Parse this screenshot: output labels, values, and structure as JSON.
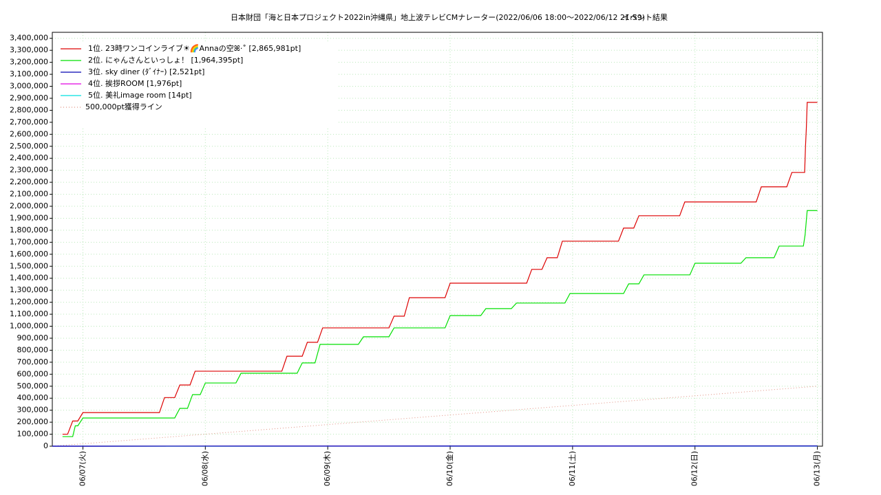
{
  "chart_data": {
    "type": "line",
    "title": "日本財団「海と日本プロジェクト2022in沖縄県」地上波テレビCMナレーター(2022/06/06 18:00～2022/06/12 21:59)",
    "subtitle": "イベント結果",
    "xlim": [
      "2022/06/06 18:00",
      "2022/06/13 01:00"
    ],
    "xticks": [
      {
        "value": "2022/06/07 00:00",
        "label": "06/07(火)"
      },
      {
        "value": "2022/06/08 00:00",
        "label": "06/08(水)"
      },
      {
        "value": "2022/06/09 00:00",
        "label": "06/09(木)"
      },
      {
        "value": "2022/06/10 00:00",
        "label": "06/10(金)"
      },
      {
        "value": "2022/06/11 00:00",
        "label": "06/11(土)"
      },
      {
        "value": "2022/06/12 00:00",
        "label": "06/12(日)"
      },
      {
        "value": "2022/06/13 00:00",
        "label": "06/13(月)"
      }
    ],
    "ylim": [
      0,
      3450000
    ],
    "yticks": [
      0,
      {
        "value": 100000,
        "label": "100,000"
      },
      {
        "value": 200000,
        "label": "200,000"
      },
      {
        "value": 300000,
        "label": "300,000"
      },
      {
        "value": 400000,
        "label": "400,000"
      },
      {
        "value": 500000,
        "label": "500,000"
      },
      {
        "value": 600000,
        "label": "600,000"
      },
      {
        "value": 700000,
        "label": "700,000"
      },
      {
        "value": 800000,
        "label": "800,000"
      },
      {
        "value": 900000,
        "label": "900,000"
      },
      {
        "value": 1000000,
        "label": "1,000,000"
      },
      {
        "value": 1100000,
        "label": "1,100,000"
      },
      {
        "value": 1200000,
        "label": "1,200,000"
      },
      {
        "value": 1300000,
        "label": "1,300,000"
      },
      {
        "value": 1400000,
        "label": "1,400,000"
      },
      {
        "value": 1500000,
        "label": "1,500,000"
      },
      {
        "value": 1600000,
        "label": "1,600,000"
      },
      {
        "value": 1700000,
        "label": "1,700,000"
      },
      {
        "value": 1800000,
        "label": "1,800,000"
      },
      {
        "value": 1900000,
        "label": "1,900,000"
      },
      {
        "value": 2000000,
        "label": "2,000,000"
      },
      {
        "value": 2100000,
        "label": "2,100,000"
      },
      {
        "value": 2200000,
        "label": "2,200,000"
      },
      {
        "value": 2300000,
        "label": "2,300,000"
      },
      {
        "value": 2400000,
        "label": "2,400,000"
      },
      {
        "value": 2500000,
        "label": "2,500,000"
      },
      {
        "value": 2600000,
        "label": "2,600,000"
      },
      {
        "value": 2700000,
        "label": "2,700,000"
      },
      {
        "value": 2800000,
        "label": "2,800,000"
      },
      {
        "value": 2900000,
        "label": "2,900,000"
      },
      {
        "value": 3000000,
        "label": "3,000,000"
      },
      {
        "value": 3100000,
        "label": "3,100,000"
      },
      {
        "value": 3200000,
        "label": "3,200,000"
      },
      {
        "value": 3300000,
        "label": "3,300,000"
      },
      {
        "value": 3400000,
        "label": "3,400,000"
      }
    ],
    "grid": true,
    "legend": "upper left",
    "series": [
      {
        "name": "1位. 23時ワンコインライブ☀🌈Annaの空ꕤ‧˚ [2,865,981pt]",
        "color": "#dd0000",
        "x": [
          "2022/06/06 20:00",
          "2022/06/06 21:00",
          "2022/06/06 22:00",
          "2022/06/06 23:00",
          "2022/06/07 00:00",
          "2022/06/07 15:00",
          "2022/06/07 16:00",
          "2022/06/07 18:00",
          "2022/06/07 19:00",
          "2022/06/07 21:00",
          "2022/06/07 22:00",
          "2022/06/08 15:00",
          "2022/06/08 16:00",
          "2022/06/08 19:00",
          "2022/06/08 20:00",
          "2022/06/08 22:00",
          "2022/06/08 23:00",
          "2022/06/09 12:00",
          "2022/06/09 13:00",
          "2022/06/09 15:00",
          "2022/06/09 16:00",
          "2022/06/09 23:00",
          "2022/06/10 00:00",
          "2022/06/10 15:00",
          "2022/06/10 16:00",
          "2022/06/10 18:00",
          "2022/06/10 19:00",
          "2022/06/10 21:00",
          "2022/06/10 22:00",
          "2022/06/11 09:00",
          "2022/06/11 10:00",
          "2022/06/11 12:00",
          "2022/06/11 13:00",
          "2022/06/11 21:00",
          "2022/06/11 22:00",
          "2022/06/12 12:00",
          "2022/06/12 13:00",
          "2022/06/12 18:00",
          "2022/06/12 19:00",
          "2022/06/12 21:30",
          "2022/06/12 21:40",
          "2022/06/12 21:50",
          "2022/06/12 22:00",
          "2022/06/13 00:00"
        ],
        "values": [
          100000,
          100000,
          210000,
          210000,
          280000,
          280000,
          405000,
          405000,
          510000,
          510000,
          625000,
          625000,
          750000,
          750000,
          866000,
          866000,
          986000,
          986000,
          1084000,
          1084000,
          1238000,
          1238000,
          1359000,
          1359000,
          1474000,
          1474000,
          1571000,
          1571000,
          1709000,
          1709000,
          1818000,
          1818000,
          1921000,
          1921000,
          2036000,
          2036000,
          2162000,
          2162000,
          2282000,
          2282000,
          2500000,
          2650000,
          2865981,
          2865981
        ]
      },
      {
        "name": "2位. にゃんさんといっしょ！ [1,964,395pt]",
        "color": "#00e000",
        "x": [
          "2022/06/06 20:00",
          "2022/06/06 22:00",
          "2022/06/06 22:30",
          "2022/06/06 23:00",
          "2022/06/07 00:00",
          "2022/06/07 18:00",
          "2022/06/07 19:00",
          "2022/06/07 20:30",
          "2022/06/07 21:30",
          "2022/06/07 23:00",
          "2022/06/08 00:00",
          "2022/06/08 06:00",
          "2022/06/08 07:00",
          "2022/06/08 18:00",
          "2022/06/08 19:00",
          "2022/06/08 21:30",
          "2022/06/08 22:30",
          "2022/06/09 06:00",
          "2022/06/09 07:00",
          "2022/06/09 12:00",
          "2022/06/09 13:00",
          "2022/06/09 23:00",
          "2022/06/10 00:00",
          "2022/06/10 06:00",
          "2022/06/10 07:00",
          "2022/06/10 12:00",
          "2022/06/10 13:00",
          "2022/06/10 22:30",
          "2022/06/10 23:30",
          "2022/06/11 10:00",
          "2022/06/11 11:00",
          "2022/06/11 13:00",
          "2022/06/11 14:00",
          "2022/06/11 23:00",
          "2022/06/12 00:00",
          "2022/06/12 09:00",
          "2022/06/12 10:00",
          "2022/06/12 15:30",
          "2022/06/12 16:30",
          "2022/06/12 21:15",
          "2022/06/12 21:35",
          "2022/06/12 22:00",
          "2022/06/13 00:00"
        ],
        "values": [
          80000,
          80000,
          170000,
          170000,
          235000,
          235000,
          315000,
          315000,
          430000,
          430000,
          527000,
          527000,
          608000,
          608000,
          694000,
          694000,
          849000,
          849000,
          912000,
          912000,
          986000,
          986000,
          1089000,
          1089000,
          1147000,
          1147000,
          1193000,
          1193000,
          1273000,
          1273000,
          1353000,
          1353000,
          1428000,
          1428000,
          1525000,
          1525000,
          1571000,
          1571000,
          1668000,
          1668000,
          1760000,
          1964395,
          1964395
        ]
      },
      {
        "name": "3位. sky diner (ﾀﾞｲﾅｰ) [2,521pt]",
        "color": "#0000b0",
        "x": [
          "2022/06/06 18:00",
          "2022/06/13 00:00"
        ],
        "values": [
          0,
          2521
        ]
      },
      {
        "name": "4位. 挨拶ROOM [1,976pt]",
        "color": "#e000e0",
        "x": [
          "2022/06/06 18:00",
          "2022/06/13 00:00"
        ],
        "values": [
          0,
          1976
        ]
      },
      {
        "name": "5位. 美礼image room [14pt]",
        "color": "#00e0e0",
        "x": [
          "2022/06/06 18:00",
          "2022/06/13 00:00"
        ],
        "values": [
          0,
          14
        ]
      },
      {
        "name": "500,000pt獲得ライン",
        "color": "#e09080",
        "line_style": "dotted",
        "x": [
          "2022/06/06 18:00",
          "2022/06/13 00:00"
        ],
        "values": [
          0,
          500000
        ]
      }
    ]
  }
}
